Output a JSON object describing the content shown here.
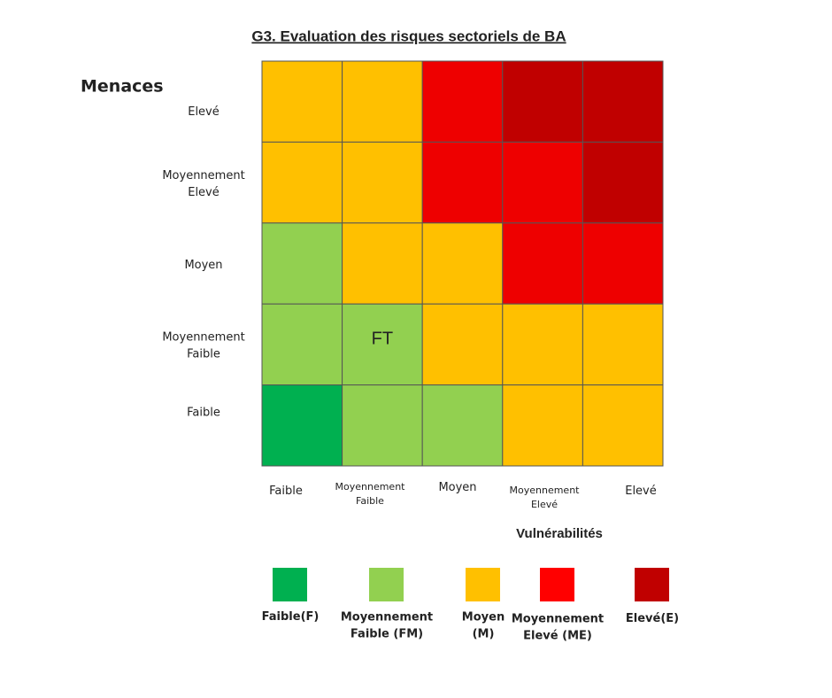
{
  "title": "G3. Evaluation des risques sectoriels de BA",
  "y_axis": {
    "title": "Menaces",
    "labels": [
      [
        "Elevé"
      ],
      [
        "Moyennement",
        "Elevé"
      ],
      [
        "Moyen"
      ],
      [
        "Moyennement",
        "Faible"
      ],
      [
        "Faible"
      ]
    ]
  },
  "x_axis": {
    "title": "Vulnérabilités",
    "labels": [
      [
        "Faible"
      ],
      [
        "Moyennement",
        "Faible"
      ],
      [
        "Moyen"
      ],
      [
        "Moyennement",
        "Elevé"
      ],
      [
        "Elevé"
      ]
    ]
  },
  "grid": [
    [
      {
        "color": "#ffc000"
      },
      {
        "color": "#ffc000"
      },
      {
        "color": "#ee0000"
      },
      {
        "color": "#c00000"
      },
      {
        "color": "#c00000"
      }
    ],
    [
      {
        "color": "#ffc000"
      },
      {
        "color": "#ffc000"
      },
      {
        "color": "#ee0000"
      },
      {
        "color": "#ee0000"
      },
      {
        "color": "#c00000"
      }
    ],
    [
      {
        "color": "#92d050"
      },
      {
        "color": "#ffc000"
      },
      {
        "color": "#ffc000"
      },
      {
        "color": "#ee0000"
      },
      {
        "color": "#ee0000"
      }
    ],
    [
      {
        "color": "#92d050"
      },
      {
        "color": "#92d050",
        "label": "FT"
      },
      {
        "color": "#ffc000"
      },
      {
        "color": "#ffc000"
      },
      {
        "color": "#ffc000"
      }
    ],
    [
      {
        "color": "#00b050"
      },
      {
        "color": "#92d050"
      },
      {
        "color": "#92d050"
      },
      {
        "color": "#ffc000"
      },
      {
        "color": "#ffc000"
      }
    ]
  ],
  "legend": [
    {
      "label": [
        "Faible(F)"
      ],
      "color": "#00b050"
    },
    {
      "label": [
        "Moyennement",
        "Faible (FM)"
      ],
      "color": "#92d050"
    },
    {
      "label": [
        "Moyen",
        "(M)"
      ],
      "color": "#ffc000"
    },
    {
      "label": [
        "Moyennement",
        "Elevé (ME)"
      ],
      "color": "#ff0000"
    },
    {
      "label": [
        "Elevé(E)"
      ],
      "color": "#c00000"
    }
  ]
}
